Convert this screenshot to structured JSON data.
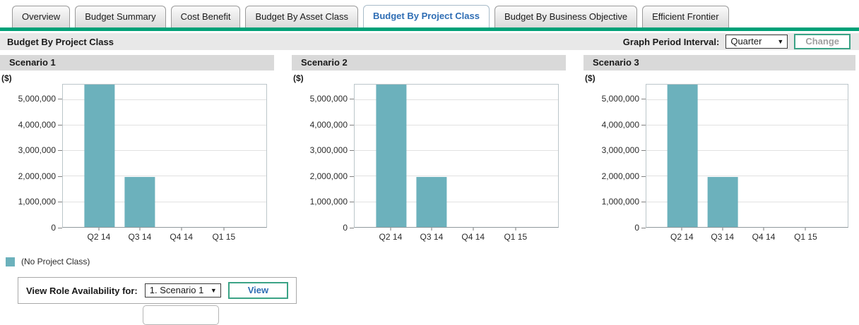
{
  "tabs": {
    "items": [
      {
        "label": "Overview",
        "active": false
      },
      {
        "label": "Budget Summary",
        "active": false
      },
      {
        "label": "Cost Benefit",
        "active": false
      },
      {
        "label": "Budget By Asset Class",
        "active": false
      },
      {
        "label": "Budget By Project Class",
        "active": true
      },
      {
        "label": "Budget By Business Objective",
        "active": false
      },
      {
        "label": "Efficient Frontier",
        "active": false
      }
    ]
  },
  "header": {
    "title": "Budget By Project Class",
    "interval_label": "Graph Period Interval:",
    "interval_value": "Quarter",
    "change_label": "Change"
  },
  "legend": {
    "label": "(No Project Class)",
    "color": "#6CB1BC"
  },
  "footer": {
    "label": "View Role Availability for:",
    "select_value": "1. Scenario 1",
    "view_label": "View"
  },
  "colors": {
    "accent_green": "#00A178",
    "bar_teal": "#6CB1BC",
    "active_tab_text": "#2e6db4",
    "band_gray": "#E8E8E8",
    "scenario_header_gray": "#D9D9D9"
  },
  "chart_data": [
    {
      "type": "bar",
      "title": "Scenario 1",
      "unit": "($)",
      "categories": [
        "Q2 14",
        "Q3 14",
        "Q4 14",
        "Q1 15"
      ],
      "values": [
        5570000,
        1950000,
        0,
        0
      ],
      "series_name": "(No Project Class)",
      "ylabel": "($)",
      "xlabel": "",
      "ylim": [
        0,
        5570000
      ],
      "grid": true,
      "bar_color": "#6CB1BC",
      "yticks": [
        {
          "value": 0,
          "label": "0"
        },
        {
          "value": 1000000,
          "label": "1,000,000"
        },
        {
          "value": 2000000,
          "label": "2,000,000"
        },
        {
          "value": 3000000,
          "label": "3,000,000"
        },
        {
          "value": 4000000,
          "label": "4,000,000"
        },
        {
          "value": 5000000,
          "label": "5,000,000"
        }
      ]
    },
    {
      "type": "bar",
      "title": "Scenario 2",
      "unit": "($)",
      "categories": [
        "Q2 14",
        "Q3 14",
        "Q4 14",
        "Q1 15"
      ],
      "values": [
        5570000,
        1950000,
        0,
        0
      ],
      "series_name": "(No Project Class)",
      "ylabel": "($)",
      "xlabel": "",
      "ylim": [
        0,
        5570000
      ],
      "grid": true,
      "bar_color": "#6CB1BC",
      "yticks": [
        {
          "value": 0,
          "label": "0"
        },
        {
          "value": 1000000,
          "label": "1,000,000"
        },
        {
          "value": 2000000,
          "label": "2,000,000"
        },
        {
          "value": 3000000,
          "label": "3,000,000"
        },
        {
          "value": 4000000,
          "label": "4,000,000"
        },
        {
          "value": 5000000,
          "label": "5,000,000"
        }
      ]
    },
    {
      "type": "bar",
      "title": "Scenario 3",
      "unit": "($)",
      "categories": [
        "Q2 14",
        "Q3 14",
        "Q4 14",
        "Q1 15"
      ],
      "values": [
        5570000,
        1950000,
        0,
        0
      ],
      "series_name": "(No Project Class)",
      "ylabel": "($)",
      "xlabel": "",
      "ylim": [
        0,
        5570000
      ],
      "grid": true,
      "bar_color": "#6CB1BC",
      "yticks": [
        {
          "value": 0,
          "label": "0"
        },
        {
          "value": 1000000,
          "label": "1,000,000"
        },
        {
          "value": 2000000,
          "label": "2,000,000"
        },
        {
          "value": 3000000,
          "label": "3,000,000"
        },
        {
          "value": 4000000,
          "label": "4,000,000"
        },
        {
          "value": 5000000,
          "label": "5,000,000"
        }
      ]
    }
  ]
}
